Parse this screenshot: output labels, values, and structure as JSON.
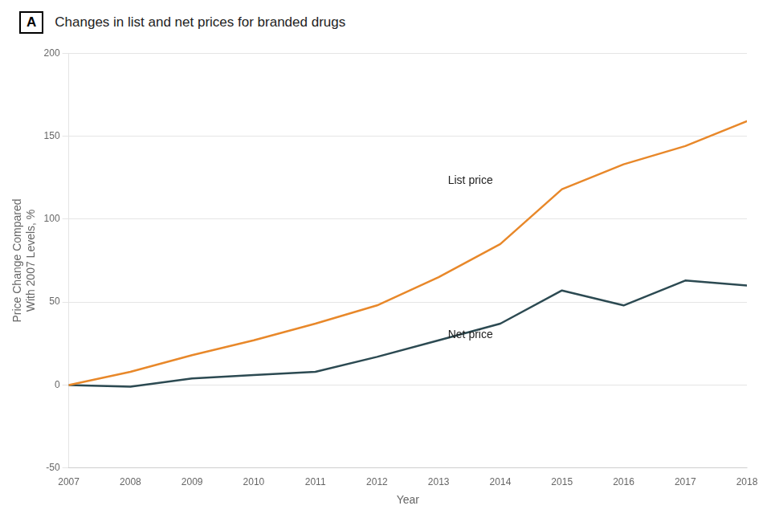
{
  "chart_data": {
    "type": "line",
    "title": "Changes in list and net prices for branded drugs",
    "panel_label": "A",
    "xlabel": "Year",
    "ylabel": "Price Change Compared\nWith 2007 Levels, %",
    "x": [
      2007,
      2008,
      2009,
      2010,
      2011,
      2012,
      2013,
      2014,
      2015,
      2016,
      2017,
      2018
    ],
    "series": [
      {
        "name": "List price",
        "color": "#E8882A",
        "values": [
          0,
          8,
          18,
          27,
          37,
          48,
          65,
          85,
          118,
          133,
          144,
          159
        ]
      },
      {
        "name": "Net price",
        "color": "#2C4A52",
        "values": [
          0,
          -1,
          4,
          6,
          8,
          17,
          27,
          37,
          57,
          48,
          63,
          60
        ]
      }
    ],
    "annotations": [
      {
        "text": "List price",
        "x": 2013.15,
        "y": 123
      },
      {
        "text": "Net price",
        "x": 2013.15,
        "y": 30
      }
    ],
    "xlim": [
      2007,
      2018
    ],
    "xticks": [
      2007,
      2008,
      2009,
      2010,
      2011,
      2012,
      2013,
      2014,
      2015,
      2016,
      2017,
      2018
    ],
    "ylim": [
      -50,
      200
    ],
    "yticks": [
      -50,
      0,
      50,
      100,
      150,
      200
    ],
    "grid": "y"
  }
}
